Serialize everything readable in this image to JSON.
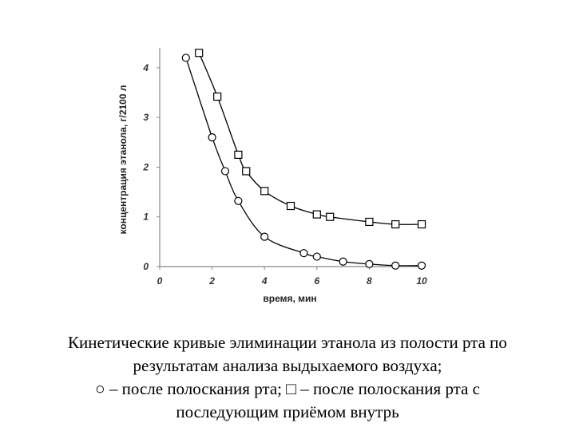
{
  "chart_data": {
    "type": "line",
    "title": "",
    "xlabel": "время, мин",
    "ylabel": "концентрация этанола, г/2100 л",
    "xlim": [
      0,
      10
    ],
    "ylim": [
      0,
      4.4
    ],
    "x_ticks": [
      "0",
      "2",
      "4",
      "6",
      "8",
      "10"
    ],
    "y_ticks": [
      "0",
      "1",
      "2",
      "3",
      "4"
    ],
    "grid": false,
    "legend": "none",
    "series": [
      {
        "marker": "circle",
        "points": [
          {
            "x": 1.0,
            "y": 4.2
          },
          {
            "x": 2.0,
            "y": 2.6
          },
          {
            "x": 2.5,
            "y": 1.92
          },
          {
            "x": 3.0,
            "y": 1.32
          },
          {
            "x": 4.0,
            "y": 0.6
          },
          {
            "x": 5.5,
            "y": 0.27
          },
          {
            "x": 6.0,
            "y": 0.2
          },
          {
            "x": 7.0,
            "y": 0.1
          },
          {
            "x": 8.0,
            "y": 0.05
          },
          {
            "x": 9.0,
            "y": 0.02
          },
          {
            "x": 10.0,
            "y": 0.02
          }
        ]
      },
      {
        "marker": "square",
        "points": [
          {
            "x": 1.5,
            "y": 4.3
          },
          {
            "x": 2.2,
            "y": 3.42
          },
          {
            "x": 3.0,
            "y": 2.25
          },
          {
            "x": 3.3,
            "y": 1.92
          },
          {
            "x": 4.0,
            "y": 1.52
          },
          {
            "x": 5.0,
            "y": 1.22
          },
          {
            "x": 6.0,
            "y": 1.05
          },
          {
            "x": 6.5,
            "y": 1.0
          },
          {
            "x": 8.0,
            "y": 0.9
          },
          {
            "x": 9.0,
            "y": 0.85
          },
          {
            "x": 10.0,
            "y": 0.85
          }
        ]
      }
    ],
    "colors": {
      "line": "#000000",
      "axis": "#888888"
    }
  },
  "caption": {
    "line1": "Кинетические кривые элиминации этанола из полости рта по",
    "line2": "результатам анализа выдыхаемого воздуха;",
    "line3": "○ – после полоскания рта; □ – после полоскания рта с",
    "line4": "последующим приёмом внутрь"
  }
}
